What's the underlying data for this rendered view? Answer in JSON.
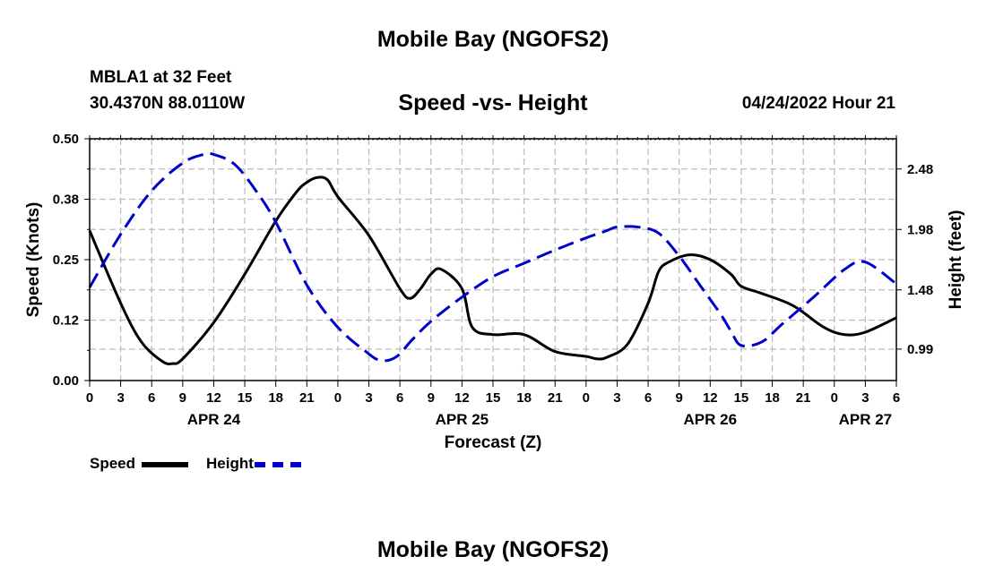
{
  "header": {
    "title": "Mobile Bay (NGOFS2)",
    "station": "MBLA1 at 32 Feet",
    "coords": "30.4370N  88.0110W",
    "chart_title": "Speed -vs- Height",
    "issued": "04/24/2022 Hour 21"
  },
  "footer": {
    "title": "Mobile Bay (NGOFS2)"
  },
  "chart_data": {
    "type": "line",
    "title": "Speed -vs- Height",
    "xlabel": "Forecast (Z)",
    "ylabel": "Speed (Knots)",
    "y2label": "Height (feet)",
    "xlim": [
      0,
      78
    ],
    "ylim": [
      0,
      0.5
    ],
    "y2lim": [
      0.73,
      2.73
    ],
    "y_ticks": [
      "0.00",
      "0.12",
      "0.25",
      "0.38",
      "0.50"
    ],
    "y2_ticks": [
      "0.99",
      "1.48",
      "1.98",
      "2.48"
    ],
    "x_ticks": [
      "0",
      "3",
      "6",
      "9",
      "12",
      "15",
      "18",
      "21",
      "0",
      "3",
      "6",
      "9",
      "12",
      "15",
      "18",
      "21",
      "0",
      "3",
      "6",
      "9",
      "12",
      "15",
      "18",
      "21",
      "0",
      "3",
      "6"
    ],
    "date_labels": [
      {
        "label": "APR 24",
        "hour": 12
      },
      {
        "label": "APR 25",
        "hour": 36
      },
      {
        "label": "APR 26",
        "hour": 60
      },
      {
        "label": "APR 27",
        "hour": 75
      }
    ],
    "legend": [
      "Speed",
      "Height"
    ],
    "colors": {
      "speed": "#000000",
      "height": "#0000cc"
    },
    "series": [
      {
        "name": "Speed",
        "axis": "left",
        "x": [
          0,
          3,
          5,
          7,
          8,
          9,
          12,
          15,
          18,
          20,
          21,
          22,
          23,
          24,
          27,
          30,
          31,
          32,
          33,
          34,
          36,
          37,
          39,
          42,
          45,
          48,
          49,
          50,
          52,
          54,
          55,
          56,
          58,
          60,
          62,
          63,
          65,
          68,
          71,
          73,
          75,
          78
        ],
        "values": [
          0.31,
          0.16,
          0.08,
          0.04,
          0.035,
          0.045,
          0.12,
          0.22,
          0.33,
          0.39,
          0.41,
          0.42,
          0.415,
          0.38,
          0.3,
          0.19,
          0.17,
          0.19,
          0.22,
          0.23,
          0.19,
          0.11,
          0.095,
          0.095,
          0.06,
          0.05,
          0.045,
          0.048,
          0.075,
          0.16,
          0.225,
          0.245,
          0.26,
          0.25,
          0.22,
          0.195,
          0.18,
          0.155,
          0.11,
          0.095,
          0.1,
          0.13
        ]
      },
      {
        "name": "Height",
        "axis": "right",
        "x": [
          0,
          3,
          6,
          9,
          11,
          12,
          14,
          16,
          18,
          21,
          24,
          27,
          28,
          29,
          30,
          31,
          33,
          36,
          39,
          42,
          45,
          48,
          50,
          51,
          53,
          55,
          57,
          59,
          61,
          62,
          63,
          65,
          67,
          70,
          73,
          75,
          78
        ],
        "values": [
          1.5,
          1.94,
          2.3,
          2.53,
          2.6,
          2.6,
          2.52,
          2.31,
          2.04,
          1.52,
          1.17,
          0.95,
          0.9,
          0.9,
          0.95,
          1.05,
          1.22,
          1.42,
          1.59,
          1.7,
          1.81,
          1.91,
          1.97,
          2.0,
          2.0,
          1.95,
          1.76,
          1.52,
          1.28,
          1.14,
          1.02,
          1.05,
          1.2,
          1.42,
          1.65,
          1.71,
          1.53
        ]
      }
    ]
  }
}
